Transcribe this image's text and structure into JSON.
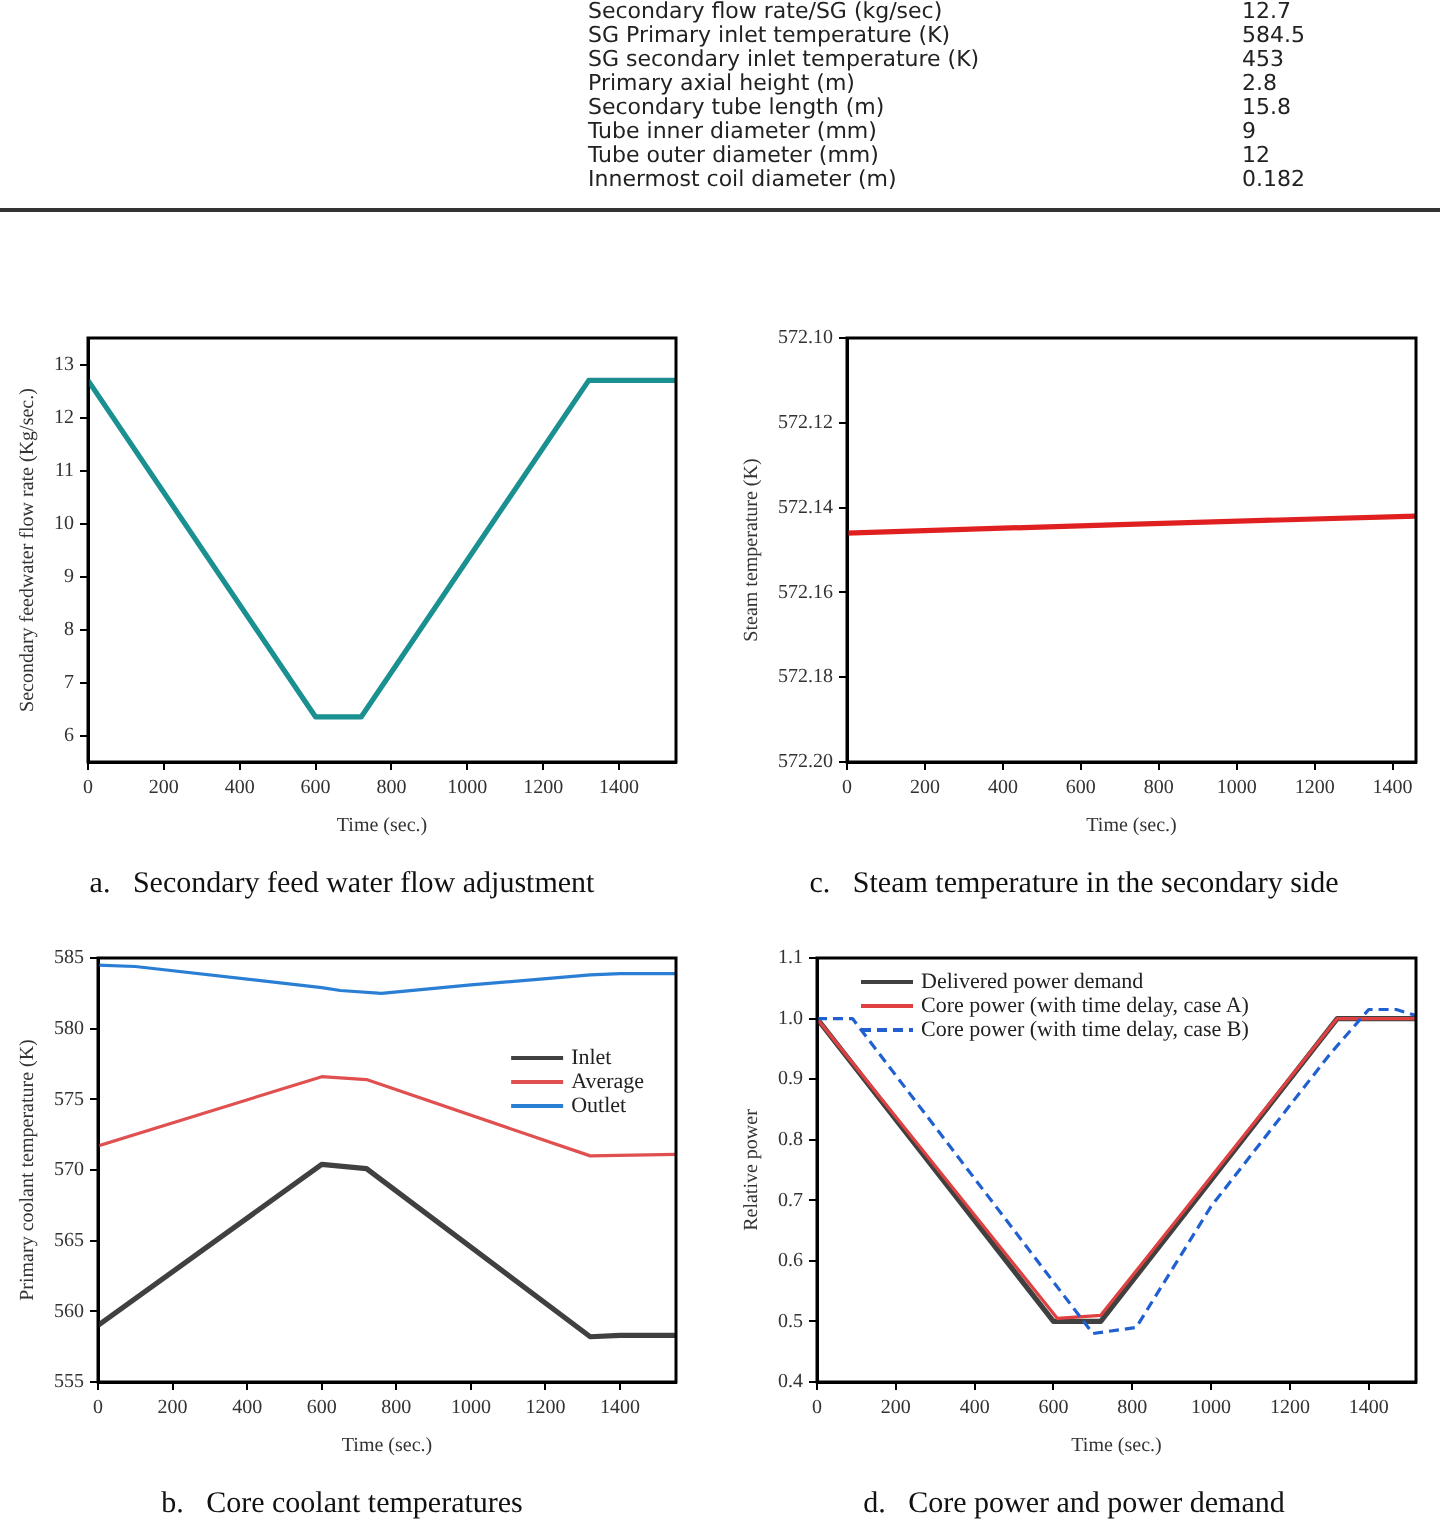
{
  "chart_data": [
    {
      "type": "other",
      "categories": [
        "Secondary flow rate/SG (kg/sec)",
        "SG Primary inlet temperature (K)",
        "SG secondary inlet temperature (K)",
        "Primary axial height (m)",
        "Secondary tube length (m)",
        "Tube inner diameter (mm)",
        "Tube outer diameter (mm)",
        "Innermost coil diameter (m)"
      ],
      "values": [
        12.7,
        584.5,
        453,
        2.8,
        15.8,
        9,
        12,
        0.182
      ],
      "data_labels": true
    },
    {
      "type": "line",
      "title": "a.   Secondary feed water flow adjustment",
      "xlabel": "Time (sec.)",
      "ylabel": "Secondary feedwater flow rate (Kg/sec.)",
      "xlim": [
        0,
        1550
      ],
      "xticks": [
        0,
        200,
        400,
        600,
        800,
        1000,
        1200,
        1400
      ],
      "ylim": [
        5.5,
        13.5
      ],
      "yticks": [
        6,
        7,
        8,
        9,
        10,
        11,
        12,
        13
      ],
      "legend": false,
      "series": [
        {
          "color": "#1a9090",
          "x": [
            0,
            600,
            720,
            1320,
            1550
          ],
          "values": [
            12.7,
            6.35,
            6.35,
            12.7,
            12.7
          ]
        }
      ]
    },
    {
      "type": "line",
      "title": "c.   Steam temperature in the secondary side",
      "xlabel": "Time (sec.)",
      "ylabel": "Steam temperature (K)",
      "xlim": [
        0,
        1460
      ],
      "xticks": [
        0,
        200,
        400,
        600,
        800,
        1000,
        1200,
        1400
      ],
      "ylim": [
        572.2,
        572.1
      ],
      "yticks": [
        {
          "value": 572.1,
          "label": "572.10"
        },
        572.12,
        572.14,
        572.16,
        572.18,
        {
          "value": 572.2,
          "label": "572.20"
        }
      ],
      "legend": false,
      "series": [
        {
          "color": "#e02020",
          "x": [
            0,
            700,
            1460
          ],
          "values": [
            572.146,
            572.144,
            572.142
          ]
        }
      ]
    },
    {
      "type": "line",
      "title": "b.   Core coolant temperatures",
      "xlabel": "Time (sec.)",
      "ylabel": "Primary coolant temperature (K)",
      "xlim": [
        0,
        1550
      ],
      "xticks": [
        0,
        200,
        400,
        600,
        800,
        1000,
        1200,
        1400
      ],
      "ylim": [
        555,
        585
      ],
      "yticks": [
        555,
        560,
        565,
        570,
        575,
        580,
        585
      ],
      "legend": "top right",
      "series": [
        {
          "name": "Inlet",
          "color": "#404040",
          "x": [
            0,
            600,
            720,
            1320,
            1400,
            1550
          ],
          "values": [
            559,
            570.4,
            570.1,
            558.2,
            558.3,
            558.3
          ]
        },
        {
          "name": "Average",
          "color": "#e05050",
          "x": [
            0,
            600,
            720,
            1320,
            1550
          ],
          "values": [
            571.7,
            576.6,
            576.4,
            571.0,
            571.1
          ]
        },
        {
          "name": "Outlet",
          "color": "#2a7fd4",
          "x": [
            0,
            100,
            600,
            650,
            760,
            1000,
            1320,
            1400,
            1550
          ],
          "values": [
            584.5,
            584.4,
            582.9,
            582.7,
            582.5,
            583.1,
            583.8,
            583.9,
            583.9
          ]
        }
      ]
    },
    {
      "type": "line",
      "title": "d.   Core power and power demand",
      "xlabel": "Time (sec.)",
      "ylabel": "Relative power",
      "xlim": [
        0,
        1520
      ],
      "xticks": [
        0,
        200,
        400,
        600,
        800,
        1000,
        1200,
        1400
      ],
      "ylim": [
        0.4,
        1.1
      ],
      "yticks": [
        0.4,
        0.5,
        0.6,
        0.7,
        0.8,
        0.9,
        {
          "value": 1,
          "label": "1.0"
        },
        1.1
      ],
      "legend": "top left",
      "series": [
        {
          "name": "Delivered power demand",
          "color": "#404040",
          "x": [
            0,
            600,
            720,
            1320,
            1520
          ],
          "values": [
            1,
            0.5,
            0.5,
            1,
            1
          ]
        },
        {
          "name": "Core power (with time delay, case A)",
          "color": "#e04040",
          "x": [
            0,
            610,
            720,
            1320,
            1520
          ],
          "values": [
            1,
            0.505,
            0.51,
            1,
            1
          ]
        },
        {
          "name": "Core power (with time delay, case B)",
          "color": "#2060d0",
          "line_style": "dashed",
          "x": [
            0,
            90,
            700,
            810,
            1000,
            1300,
            1400,
            1470,
            1520
          ],
          "values": [
            1,
            1,
            0.48,
            0.49,
            0.69,
            0.94,
            1.015,
            1.015,
            1.005
          ]
        }
      ]
    }
  ]
}
